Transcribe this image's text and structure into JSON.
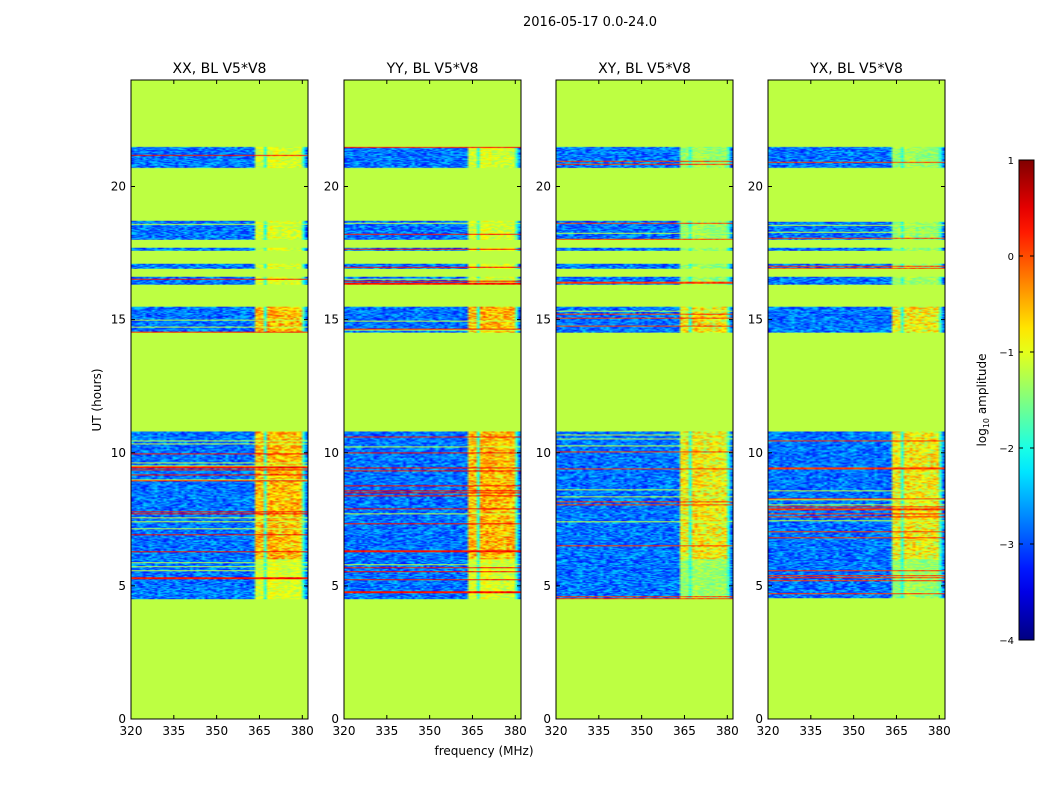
{
  "figure": {
    "suptitle": "2016-05-17 0.0-24.0",
    "ylabel": "UT (hours)",
    "xlabel": "frequency (MHz)"
  },
  "colorbar": {
    "label_prefix": "log",
    "label_sub": "10",
    "label_suffix": " amplitude",
    "range": [
      -4,
      1
    ],
    "ticks": [
      {
        "value": 1,
        "label": "1"
      },
      {
        "value": 0,
        "label": "0"
      },
      {
        "value": -1,
        "label": "−1"
      },
      {
        "value": -2,
        "label": "−2"
      },
      {
        "value": -3,
        "label": "−3"
      },
      {
        "value": -4,
        "label": "−4"
      }
    ],
    "colormap": "jet"
  },
  "chart_data": {
    "type": "heatmap",
    "x_range": [
      320,
      382
    ],
    "y_range": [
      0,
      24
    ],
    "x_ticks": [
      {
        "value": 320,
        "label": "320"
      },
      {
        "value": 335,
        "label": "335"
      },
      {
        "value": 350,
        "label": "350"
      },
      {
        "value": 365,
        "label": "365"
      },
      {
        "value": 380,
        "label": "380"
      }
    ],
    "y_ticks": [
      {
        "value": 0,
        "label": "0"
      },
      {
        "value": 5,
        "label": "5"
      },
      {
        "value": 10,
        "label": "10"
      },
      {
        "value": 15,
        "label": "15"
      },
      {
        "value": 20,
        "label": "20"
      }
    ],
    "fill_value": -1.2,
    "data_blocks_hours": [
      {
        "start": 4.5,
        "end": 6.0
      },
      {
        "start": 6.0,
        "end": 10.8
      },
      {
        "start": 14.5,
        "end": 15.5
      },
      {
        "start": 16.3,
        "end": 16.6
      },
      {
        "start": 16.9,
        "end": 17.1
      },
      {
        "start": 17.6,
        "end": 17.7
      },
      {
        "start": 18.0,
        "end": 18.7
      },
      {
        "start": 20.7,
        "end": 21.5
      }
    ],
    "signal_band_mhz": [
      363,
      380
    ],
    "panels": [
      {
        "title": "XX, BL V5*V8"
      },
      {
        "title": "YY, BL V5*V8"
      },
      {
        "title": "XY, BL V5*V8"
      },
      {
        "title": "YX, BL V5*V8"
      }
    ]
  }
}
